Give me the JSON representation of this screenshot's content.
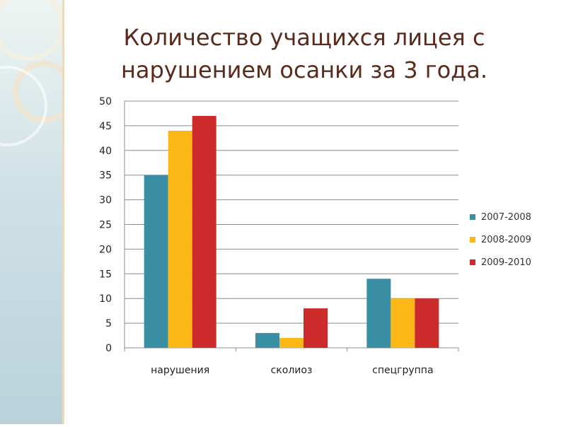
{
  "slide": {
    "title": "Количество учащихся  лицея с нарушением осанки за 3 года."
  },
  "chart_data": {
    "type": "bar",
    "categories": [
      "нарушения",
      "сколиоз",
      "спецгруппа"
    ],
    "series": [
      {
        "name": "2007-2008",
        "values": [
          35,
          3,
          14
        ],
        "color": "#3a8fa5"
      },
      {
        "name": "2008-2009",
        "values": [
          44,
          2,
          10
        ],
        "color": "#fbb715"
      },
      {
        "name": "2009-2010",
        "values": [
          47,
          8,
          10
        ],
        "color": "#cc2b2b"
      }
    ],
    "ylim": [
      0,
      50
    ],
    "yticks": [
      0,
      5,
      10,
      15,
      20,
      25,
      30,
      35,
      40,
      45,
      50
    ],
    "grid": true,
    "legend_position": "right"
  }
}
